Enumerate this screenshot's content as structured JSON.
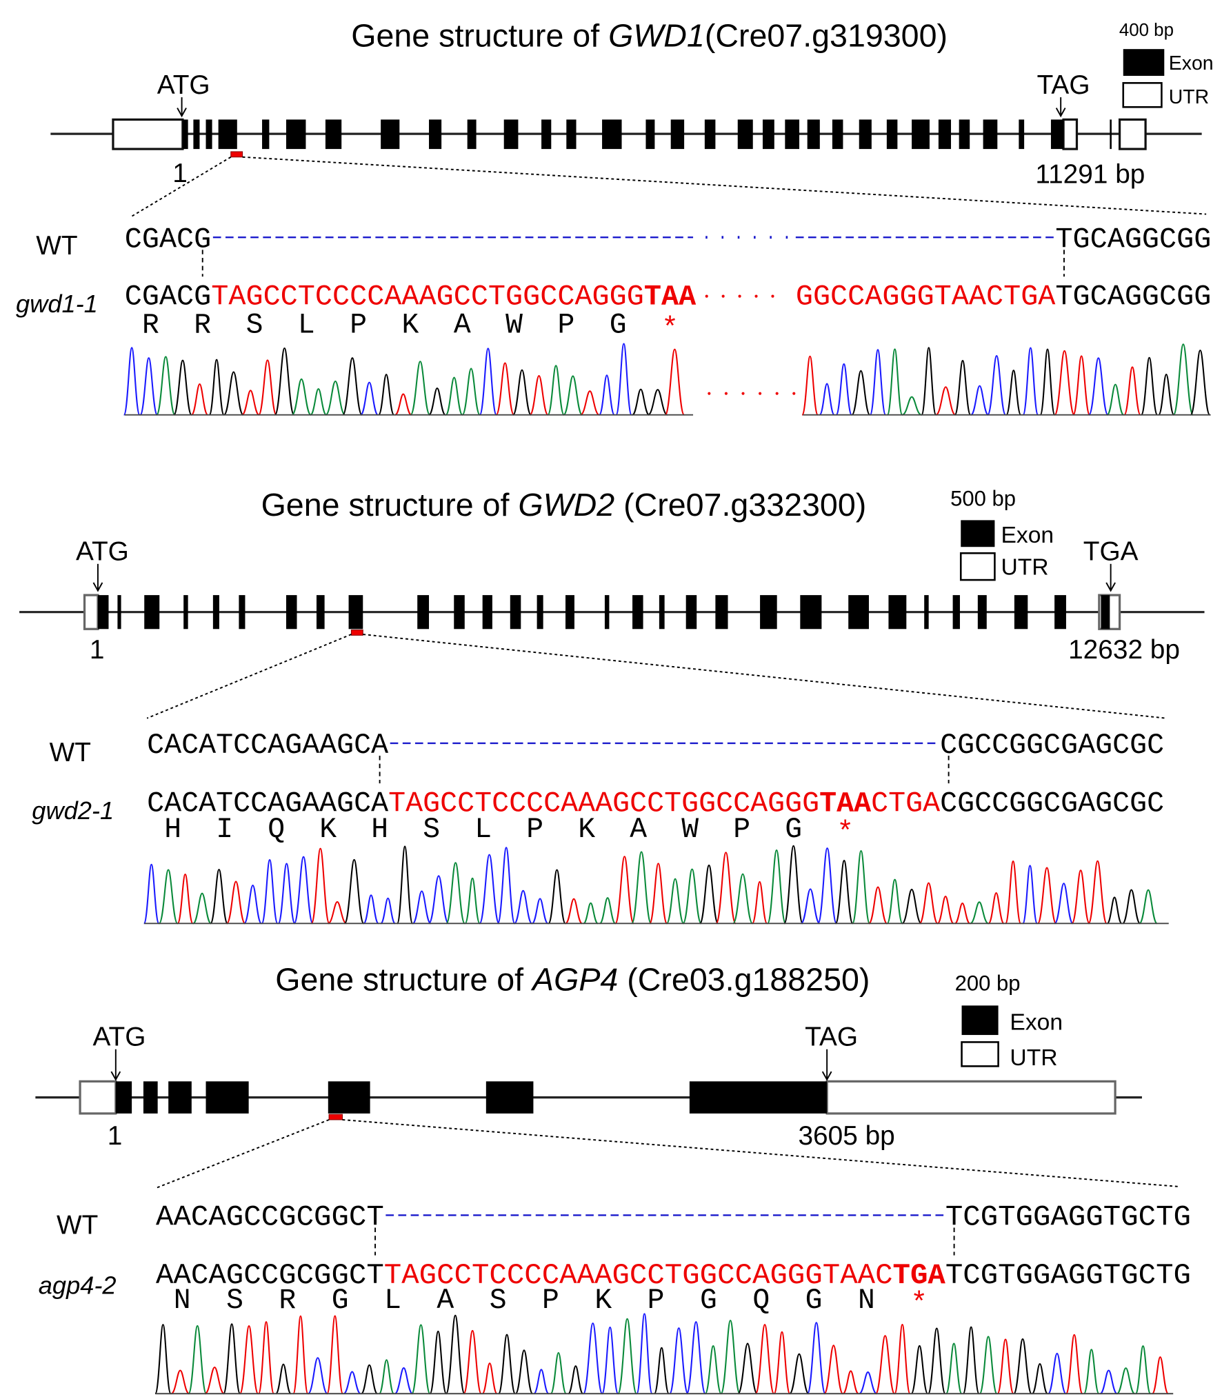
{
  "panels": [
    {
      "title": {
        "prefix": "Gene structure of ",
        "gene": "GWD1",
        "locus": "(Cre07.g319300)"
      },
      "scale": "400 bp",
      "legend": {
        "exon": "Exon",
        "utr": "UTR"
      },
      "start_codon": "ATG",
      "stop_codon": "TAG",
      "start_pos": "1",
      "end_pos": "11291 bp",
      "wt_label": "WT",
      "mutant_label": "gwd1-1",
      "wt_seq": {
        "left": "CGACG",
        "right": "TGCAGGCGG"
      },
      "mut_seq": {
        "left": "CGACG",
        "insert": "TAGCCTCCCCAAAGCCTGGCCAGGG",
        "stop": "TAA",
        "insert_after": "GGCCAGGGTAACTGA",
        "right": "TGCAGGCGG"
      },
      "amino_acids": [
        "R",
        "R",
        "S",
        "L",
        "P",
        "K",
        "A",
        "W",
        "P",
        "G"
      ],
      "stop_symbol": "*"
    },
    {
      "title": {
        "prefix": "Gene structure of ",
        "gene": "GWD2",
        "locus": " (Cre07.g332300)"
      },
      "scale": "500 bp",
      "legend": {
        "exon": "Exon",
        "utr": "UTR"
      },
      "start_codon": "ATG",
      "stop_codon": "TGA",
      "start_pos": "1",
      "end_pos": "12632 bp",
      "wt_label": "WT",
      "mutant_label": "gwd2-1",
      "wt_seq": {
        "left": "CACATCCAGAAGCA",
        "right": "CGCCGGCGAGCGC"
      },
      "mut_seq": {
        "left": "CACATCCAGAAGCA",
        "insert": "TAGCCTCCCCAAAGCCTGGCCAGGG",
        "stop": "TAA",
        "insert_after": "CTGA",
        "right": "CGCCGGCGAGCGC"
      },
      "amino_acids": [
        "H",
        "I",
        "Q",
        "K",
        "H",
        "S",
        "L",
        "P",
        "K",
        "A",
        "W",
        "P",
        "G"
      ],
      "stop_symbol": "*"
    },
    {
      "title": {
        "prefix": "Gene structure of ",
        "gene": "AGP4",
        "locus": " (Cre03.g188250)"
      },
      "scale": "200 bp",
      "legend": {
        "exon": "Exon",
        "utr": "UTR"
      },
      "start_codon": "ATG",
      "stop_codon": "TAG",
      "start_pos": "1",
      "end_pos": "3605 bp",
      "wt_label": "WT",
      "mutant_label": "agp4-2",
      "wt_seq": {
        "left": "AACAGCCGCGGCT",
        "right": "TCGTGGAGGTGCTG"
      },
      "mut_seq": {
        "left": "AACAGCCGCGGCT",
        "insert": "TAGCCTCCCCAAAGCCTGGCCAGGGTAAC",
        "stop": "TGA",
        "right": "TCGTGGAGGTGCTG"
      },
      "amino_acids": [
        "N",
        "S",
        "R",
        "G",
        "L",
        "A",
        "S",
        "P",
        "K",
        "P",
        "G",
        "Q",
        "G",
        "N"
      ],
      "stop_symbol": "*"
    }
  ]
}
